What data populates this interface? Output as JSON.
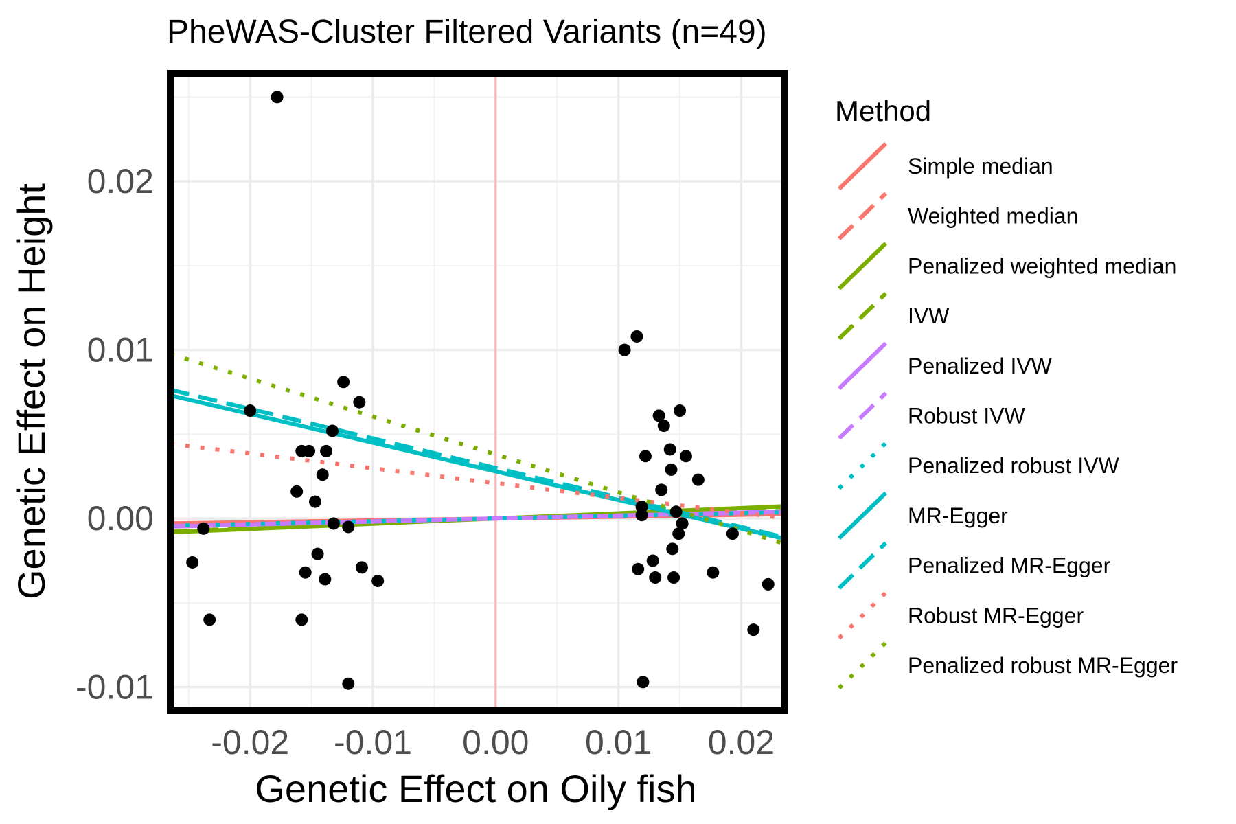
{
  "chart_data": {
    "type": "scatter",
    "title": "PheWAS-Cluster Filtered Variants (n=49)",
    "xlabel": "Genetic Effect on Oily fish",
    "ylabel": "Genetic Effect on Height",
    "xlim": [
      -0.0265,
      0.0235
    ],
    "ylim": [
      -0.0114,
      0.0264
    ],
    "x_ticks": [
      -0.02,
      -0.01,
      0.0,
      0.01,
      0.02
    ],
    "x_tick_labels": [
      "-0.02",
      "-0.01",
      "0.00",
      "0.01",
      "0.02"
    ],
    "y_ticks": [
      -0.01,
      0.0,
      0.01,
      0.02
    ],
    "y_tick_labels": [
      "-0.01",
      "0.00",
      "0.01",
      "0.02"
    ],
    "grid": true,
    "reference_line": {
      "x": 0.0,
      "color": "#f4b8b8"
    },
    "legend": {
      "title": "Method",
      "position": "right",
      "entries": [
        {
          "label": "Simple median",
          "color": "#F8766D",
          "dash": "solid"
        },
        {
          "label": "Weighted median",
          "color": "#F8766D",
          "dash": "dashed"
        },
        {
          "label": "Penalized weighted median",
          "color": "#7CAE00",
          "dash": "solid"
        },
        {
          "label": "IVW",
          "color": "#7CAE00",
          "dash": "dashed"
        },
        {
          "label": "Penalized IVW",
          "color": "#C77CFF",
          "dash": "solid"
        },
        {
          "label": "Robust IVW",
          "color": "#C77CFF",
          "dash": "dashed"
        },
        {
          "label": "Penalized robust IVW",
          "color": "#00BFC4",
          "dash": "dotted"
        },
        {
          "label": "MR-Egger",
          "color": "#00BFC4",
          "dash": "solid"
        },
        {
          "label": "Penalized MR-Egger",
          "color": "#00BFC4",
          "dash": "dashed"
        },
        {
          "label": "Robust MR-Egger",
          "color": "#F8766D",
          "dash": "dotted"
        },
        {
          "label": "Penalized robust MR-Egger",
          "color": "#7CAE00",
          "dash": "dotted"
        }
      ]
    },
    "lines": [
      {
        "method": "Simple median",
        "color": "#F8766D",
        "dash": "solid",
        "intercept": 0.0,
        "slope": 0.011
      },
      {
        "method": "Weighted median",
        "color": "#F8766D",
        "dash": "dashed",
        "intercept": 0.0,
        "slope": 0.012
      },
      {
        "method": "Penalized weighted median",
        "color": "#7CAE00",
        "dash": "solid",
        "intercept": 0.0,
        "slope": 0.031
      },
      {
        "method": "IVW",
        "color": "#7CAE00",
        "dash": "dashed",
        "intercept": 0.0,
        "slope": 0.029
      },
      {
        "method": "Penalized IVW",
        "color": "#C77CFF",
        "dash": "solid",
        "intercept": 0.0,
        "slope": 0.018
      },
      {
        "method": "Robust IVW",
        "color": "#C77CFF",
        "dash": "dashed",
        "intercept": 0.0,
        "slope": 0.017
      },
      {
        "method": "Penalized robust IVW",
        "color": "#00BFC4",
        "dash": "dotted",
        "intercept": 0.0,
        "slope": 0.016
      },
      {
        "method": "MR-Egger",
        "color": "#00BFC4",
        "dash": "solid",
        "intercept": 0.0028,
        "slope": -0.17
      },
      {
        "method": "Penalized MR-Egger",
        "color": "#00BFC4",
        "dash": "dashed",
        "intercept": 0.003,
        "slope": -0.175
      },
      {
        "method": "Robust MR-Egger",
        "color": "#F8766D",
        "dash": "dotted",
        "intercept": 0.0021,
        "slope": -0.088
      },
      {
        "method": "Penalized robust MR-Egger",
        "color": "#7CAE00",
        "dash": "dotted",
        "intercept": 0.0038,
        "slope": -0.225
      }
    ],
    "points": [
      {
        "x": -0.0178,
        "y": 0.025
      },
      {
        "x": -0.02,
        "y": 0.0064
      },
      {
        "x": -0.0247,
        "y": -0.0026
      },
      {
        "x": -0.0233,
        "y": -0.006
      },
      {
        "x": -0.0238,
        "y": -0.0006
      },
      {
        "x": -0.0162,
        "y": 0.0016
      },
      {
        "x": -0.0158,
        "y": 0.004
      },
      {
        "x": -0.0152,
        "y": 0.004
      },
      {
        "x": -0.0147,
        "y": 0.001
      },
      {
        "x": -0.0145,
        "y": -0.0021
      },
      {
        "x": -0.0141,
        "y": 0.0026
      },
      {
        "x": -0.0138,
        "y": 0.004
      },
      {
        "x": -0.0133,
        "y": 0.0052
      },
      {
        "x": -0.0132,
        "y": -0.0003
      },
      {
        "x": -0.0124,
        "y": 0.0081
      },
      {
        "x": -0.012,
        "y": -0.0005
      },
      {
        "x": -0.0111,
        "y": 0.0069
      },
      {
        "x": -0.0109,
        "y": -0.0029
      },
      {
        "x": -0.0096,
        "y": -0.0037
      },
      {
        "x": -0.0155,
        "y": -0.0032
      },
      {
        "x": -0.0139,
        "y": -0.0036
      },
      {
        "x": -0.0158,
        "y": -0.006
      },
      {
        "x": -0.012,
        "y": -0.0098
      },
      {
        "x": 0.0105,
        "y": 0.01
      },
      {
        "x": 0.0115,
        "y": 0.0108
      },
      {
        "x": 0.0133,
        "y": 0.0061
      },
      {
        "x": 0.0137,
        "y": 0.0055
      },
      {
        "x": 0.015,
        "y": 0.0064
      },
      {
        "x": 0.0122,
        "y": 0.0037
      },
      {
        "x": 0.0142,
        "y": 0.0041
      },
      {
        "x": 0.0143,
        "y": 0.0029
      },
      {
        "x": 0.0155,
        "y": 0.0037
      },
      {
        "x": 0.0165,
        "y": 0.0023
      },
      {
        "x": 0.0135,
        "y": 0.0017
      },
      {
        "x": 0.0119,
        "y": 0.0007
      },
      {
        "x": 0.0119,
        "y": 0.0002
      },
      {
        "x": 0.0147,
        "y": 0.0004
      },
      {
        "x": 0.0152,
        "y": -0.0003
      },
      {
        "x": 0.0149,
        "y": -0.0009
      },
      {
        "x": 0.0144,
        "y": -0.0018
      },
      {
        "x": 0.0128,
        "y": -0.0025
      },
      {
        "x": 0.0116,
        "y": -0.003
      },
      {
        "x": 0.013,
        "y": -0.0035
      },
      {
        "x": 0.0145,
        "y": -0.0035
      },
      {
        "x": 0.0177,
        "y": -0.0032
      },
      {
        "x": 0.0193,
        "y": -0.0009
      },
      {
        "x": 0.0222,
        "y": -0.0039
      },
      {
        "x": 0.021,
        "y": -0.0066
      },
      {
        "x": 0.012,
        "y": -0.0097
      }
    ]
  }
}
